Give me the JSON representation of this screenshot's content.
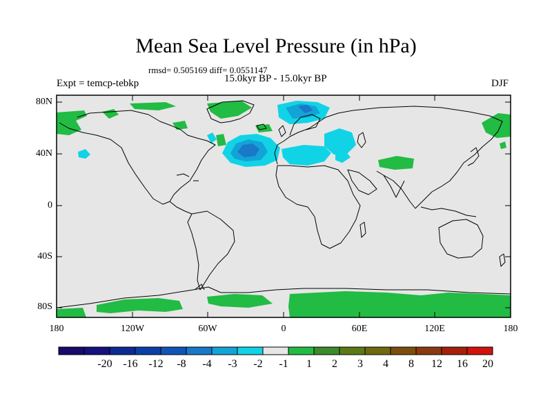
{
  "title": "Mean Sea Level Pressure (in hPa)",
  "stats": "rmsd= 0.505169 diff= 0.0551147",
  "period": "15.0kyr BP - 15.0kyr BP",
  "expt": "Expt = temcp-tebkp",
  "season": "DJF",
  "lat_labels": [
    "80N",
    "40N",
    "0",
    "40S",
    "80S"
  ],
  "lon_labels": [
    "180",
    "120W",
    "60W",
    "0",
    "60E",
    "120E",
    "180"
  ],
  "colorbar": {
    "labels": [
      "-20",
      "-16",
      "-12",
      "-8",
      "-4",
      "-3",
      "-2",
      "-1",
      "1",
      "2",
      "3",
      "4",
      "8",
      "12",
      "16",
      "20"
    ],
    "colors": [
      "#1a0a6b",
      "#15127e",
      "#0d2a94",
      "#0a3fa8",
      "#0f55b8",
      "#1a78c8",
      "#14a3d6",
      "#11d3e6",
      "#e6e6e6",
      "#22bb44",
      "#3d8a2a",
      "#5b7a16",
      "#6e6a0d",
      "#7c4e0d",
      "#8a3a10",
      "#a5200c",
      "#d2120c"
    ]
  },
  "colors": {
    "ocean_land_fill": "#e6e6e6",
    "coast": "#000000",
    "positive": "#22bb44",
    "light_negative": "#11d3e6",
    "mid_negative": "#14a3d6",
    "strong_negative": "#1a78c8"
  }
}
